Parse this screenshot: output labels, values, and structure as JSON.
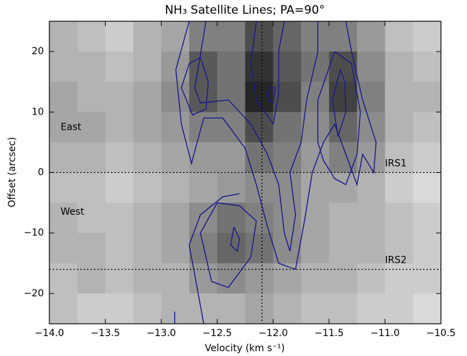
{
  "chart_data": {
    "type": "heatmap",
    "title": "NH₃ Satellite Lines; PA=90°",
    "xlabel": "Velocity (km s⁻¹)",
    "ylabel": "Offset (arcsec)",
    "xlim": [
      -14,
      -10.5
    ],
    "ylim": [
      -25,
      25
    ],
    "xticks": [
      {
        "value": -14,
        "label": "−14.0"
      },
      {
        "value": -13.5,
        "label": "−13.5"
      },
      {
        "value": -13,
        "label": "−13.0"
      },
      {
        "value": -12.5,
        "label": "−12.5"
      },
      {
        "value": -12,
        "label": "−12.0"
      },
      {
        "value": -11.5,
        "label": "−11.5"
      },
      {
        "value": -11,
        "label": "−11.0"
      },
      {
        "value": -10.5,
        "label": "−10.5"
      }
    ],
    "yticks": [
      {
        "value": -20,
        "label": "−20"
      },
      {
        "value": -10,
        "label": "−10"
      },
      0,
      10,
      20
    ],
    "xbins": [
      -14,
      -13.75,
      -13.5,
      -13.25,
      -13,
      -12.75,
      -12.5,
      -12.25,
      -12,
      -11.75,
      -11.5,
      -11.25,
      -11,
      -10.75,
      -10.5
    ],
    "ybins": [
      25,
      20,
      15,
      10,
      5,
      0,
      -5,
      -10,
      -15,
      -20,
      -25
    ],
    "z": [
      [
        0.3,
        0.25,
        0.2,
        0.3,
        0.35,
        0.5,
        0.5,
        0.7,
        0.6,
        0.5,
        0.5,
        0.4,
        0.25,
        0.2
      ],
      [
        0.3,
        0.3,
        0.25,
        0.3,
        0.4,
        0.65,
        0.55,
        0.8,
        0.65,
        0.55,
        0.7,
        0.45,
        0.3,
        0.25
      ],
      [
        0.35,
        0.3,
        0.3,
        0.35,
        0.45,
        0.65,
        0.55,
        0.85,
        0.7,
        0.5,
        0.75,
        0.5,
        0.3,
        0.3
      ],
      [
        0.35,
        0.35,
        0.3,
        0.35,
        0.4,
        0.5,
        0.5,
        0.7,
        0.55,
        0.45,
        0.6,
        0.45,
        0.3,
        0.25
      ],
      [
        0.3,
        0.3,
        0.25,
        0.3,
        0.35,
        0.4,
        0.4,
        0.55,
        0.5,
        0.4,
        0.5,
        0.4,
        0.25,
        0.2
      ],
      [
        0.25,
        0.25,
        0.2,
        0.25,
        0.3,
        0.35,
        0.4,
        0.45,
        0.45,
        0.35,
        0.35,
        0.3,
        0.2,
        0.15
      ],
      [
        0.3,
        0.25,
        0.25,
        0.3,
        0.35,
        0.45,
        0.55,
        0.5,
        0.45,
        0.35,
        0.3,
        0.3,
        0.25,
        0.2
      ],
      [
        0.3,
        0.3,
        0.25,
        0.3,
        0.35,
        0.5,
        0.6,
        0.55,
        0.45,
        0.35,
        0.3,
        0.3,
        0.25,
        0.2
      ],
      [
        0.25,
        0.3,
        0.25,
        0.3,
        0.3,
        0.4,
        0.45,
        0.4,
        0.35,
        0.3,
        0.3,
        0.25,
        0.2,
        0.2
      ],
      [
        0.25,
        0.2,
        0.2,
        0.25,
        0.3,
        0.3,
        0.3,
        0.35,
        0.3,
        0.25,
        0.25,
        0.2,
        0.2,
        0.15
      ]
    ],
    "contour_color": "#1a1a8c",
    "contours": [
      {
        "x": [
          -12.75,
          -12.87,
          -12.82,
          -12.73,
          -12.62,
          -12.45,
          -12.25,
          -12.15,
          -12.05,
          -11.95,
          -11.8,
          -11.72,
          -11.65,
          -11.55,
          -11.45,
          -11.35,
          -11.25,
          -11.2,
          -11.1,
          -11.08,
          -11.2,
          -11.3,
          -11.35
        ],
        "y": [
          25,
          17,
          8,
          1.5,
          9,
          9,
          4,
          -2,
          -9,
          -15,
          -16,
          -8,
          0,
          5,
          8,
          3,
          -2,
          3,
          0,
          5,
          12,
          20,
          25
        ]
      },
      {
        "x": [
          -12.6,
          -12.7,
          -12.65,
          -12.4,
          -12.2,
          -12.05,
          -11.95,
          -11.9,
          -11.85,
          -11.8,
          -11.85,
          -11.75,
          -11.7,
          -11.6,
          -11.6
        ],
        "y": [
          25,
          14,
          11.5,
          12,
          8,
          3,
          -2,
          -10,
          -13,
          -7,
          0,
          5,
          12,
          20,
          25
        ]
      },
      {
        "x": [
          -11.45,
          -11.6,
          -11.6,
          -11.55,
          -11.45,
          -11.35,
          -11.25,
          -11.22,
          -11.3,
          -11.45
        ],
        "y": [
          20,
          12,
          5,
          2,
          -1,
          -2,
          3,
          10,
          18,
          20
        ]
      },
      {
        "x": [
          -11.4,
          -11.47,
          -11.42,
          -11.35,
          -11.36,
          -11.4
        ],
        "y": [
          17,
          12,
          6,
          10,
          15,
          17
        ]
      },
      {
        "x": [
          -12.75,
          -12.82,
          -12.72,
          -12.6,
          -12.58,
          -12.65,
          -12.75
        ],
        "y": [
          18,
          14,
          9.5,
          10.5,
          15,
          19,
          18
        ]
      },
      {
        "x": [
          -12.15,
          -12.2,
          -12.15,
          -12.0,
          -11.95,
          -11.95,
          -11.9
        ],
        "y": [
          25,
          18,
          12,
          8,
          13,
          20,
          25
        ]
      },
      {
        "x": [
          -12.03,
          -12.05,
          -12.0,
          -11.98,
          -12.03
        ],
        "y": [
          14,
          12,
          11.5,
          14,
          14
        ]
      },
      {
        "x": [
          -12.5,
          -12.65,
          -12.55,
          -12.4,
          -12.2,
          -12.15,
          -12.3,
          -12.5
        ],
        "y": [
          -5,
          -10,
          -18,
          -19,
          -14,
          -8,
          -5.5,
          -5
        ]
      },
      {
        "x": [
          -12.35,
          -12.38,
          -12.32,
          -12.3,
          -12.35
        ],
        "y": [
          -9,
          -12,
          -13,
          -11,
          -9
        ]
      },
      {
        "x": [
          -12.62,
          -12.7,
          -12.75,
          -12.65,
          -12.45,
          -12.3
        ],
        "y": [
          -25,
          -17,
          -12,
          -7,
          -4,
          -3.5
        ]
      },
      {
        "x": [
          -12.88,
          -12.88
        ],
        "y": [
          -25,
          -23
        ]
      }
    ],
    "vlines": [
      -12.1
    ],
    "hlines": [
      0,
      -16
    ],
    "annotations": [
      {
        "text": "East",
        "x": -13.9,
        "y": 7.5
      },
      {
        "text": "West",
        "x": -13.9,
        "y": -6.5
      },
      {
        "text": "IRS1",
        "x": -11.0,
        "y": 1.5
      },
      {
        "text": "IRS2",
        "x": -11.0,
        "y": -14.5
      }
    ]
  }
}
